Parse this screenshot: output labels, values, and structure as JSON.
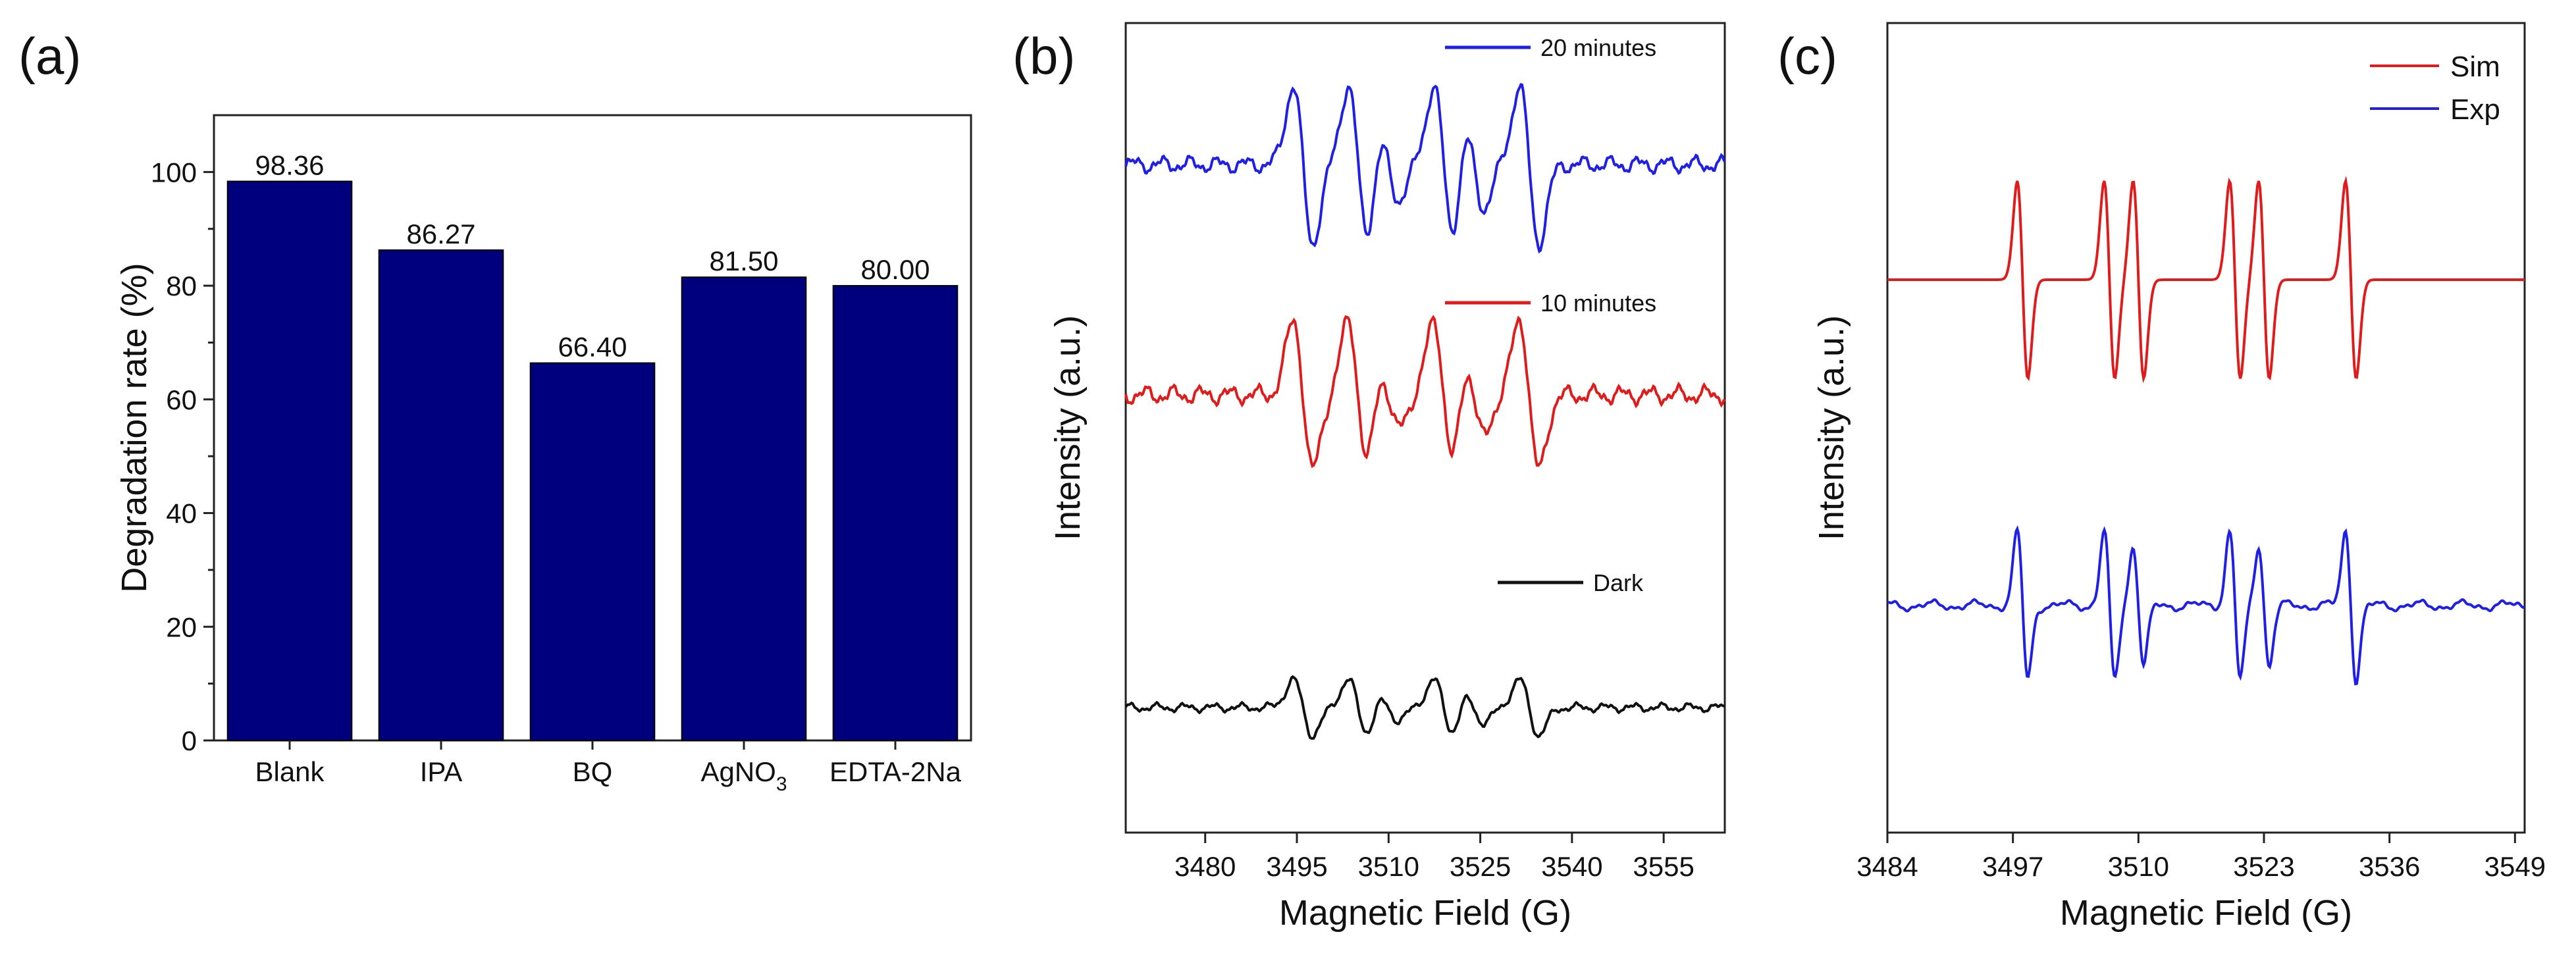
{
  "panels": {
    "a": {
      "label": "(a)",
      "ylabel": "Degradation rate (%)",
      "ylim": [
        0,
        110
      ],
      "yticks": [
        0,
        20,
        40,
        60,
        80,
        100
      ],
      "bar_color": "#00007f"
    },
    "b": {
      "label": "(b)",
      "ylabel": "Intensity (a.u.)",
      "xlabel": "Magnetic Field (G)",
      "xlim": [
        3467,
        3565
      ],
      "xticks": [
        3480,
        3495,
        3510,
        3525,
        3540,
        3555
      ]
    },
    "c": {
      "label": "(c)",
      "ylabel": "Intensity (a.u.)",
      "xlabel": "Magnetic Field (G)",
      "xlim": [
        3484,
        3550
      ],
      "xticks": [
        3484,
        3497,
        3510,
        3523,
        3536,
        3549
      ]
    }
  },
  "chart_data": [
    {
      "type": "bar",
      "panel": "a",
      "categories": [
        "Blank",
        "IPA",
        "BQ",
        "AgNO3",
        "EDTA-2Na"
      ],
      "category_labels": [
        {
          "main": "Blank",
          "sub": ""
        },
        {
          "main": "IPA",
          "sub": ""
        },
        {
          "main": "BQ",
          "sub": ""
        },
        {
          "main": "AgNO",
          "sub": "3"
        },
        {
          "main": "EDTA-2Na",
          "sub": ""
        }
      ],
      "values": [
        98.36,
        86.27,
        66.4,
        81.5,
        80.0
      ],
      "value_labels": [
        "98.36",
        "86.27",
        "66.40",
        "81.50",
        "80.00"
      ],
      "xlabel": "",
      "ylabel": "Degradation rate (%)",
      "ylim": [
        0,
        110
      ]
    },
    {
      "type": "line",
      "panel": "b",
      "xlabel": "Magnetic Field (G)",
      "ylabel": "Intensity (a.u.)",
      "xlim": [
        3467,
        3565
      ],
      "series": [
        {
          "name": "20 minutes",
          "color": "#1f1fe6",
          "offset": 2.0,
          "scale": 1.0,
          "peaks": [
            3496,
            3505,
            3510,
            3519,
            3524,
            3533
          ],
          "amps": [
            1.0,
            1.0,
            0.45,
            1.0,
            0.55,
            1.0
          ]
        },
        {
          "name": "10 minutes",
          "color": "#e01b1b",
          "offset": 1.0,
          "scale": 0.95,
          "peaks": [
            3496,
            3505,
            3510,
            3519,
            3524,
            3533
          ],
          "amps": [
            1.0,
            1.0,
            0.45,
            1.0,
            0.55,
            1.0
          ]
        },
        {
          "name": "Dark",
          "color": "#111111",
          "offset": 0.0,
          "scale": 0.35,
          "peaks": [
            3496,
            3505,
            3510,
            3519,
            3524,
            3533
          ],
          "amps": [
            1.0,
            1.0,
            0.45,
            1.0,
            0.55,
            1.0
          ]
        }
      ]
    },
    {
      "type": "line",
      "panel": "c",
      "xlabel": "Magnetic Field (G)",
      "ylabel": "Intensity (a.u.)",
      "xlim": [
        3484,
        3550
      ],
      "series": [
        {
          "name": "Sim",
          "color": "#e01b1b",
          "offset": 1.0,
          "scale": 1.0,
          "peaks": [
            3498,
            3507,
            3510,
            3520,
            3523,
            3532
          ],
          "amps": [
            1.0,
            1.0,
            1.0,
            1.0,
            1.0,
            1.0
          ]
        },
        {
          "name": "Exp",
          "color": "#1f1fe6",
          "offset": 0.0,
          "scale": 0.75,
          "peaks": [
            3498,
            3507,
            3510,
            3520,
            3523,
            3532
          ],
          "amps": [
            1.0,
            1.0,
            0.8,
            1.0,
            0.8,
            1.0
          ]
        }
      ]
    }
  ]
}
